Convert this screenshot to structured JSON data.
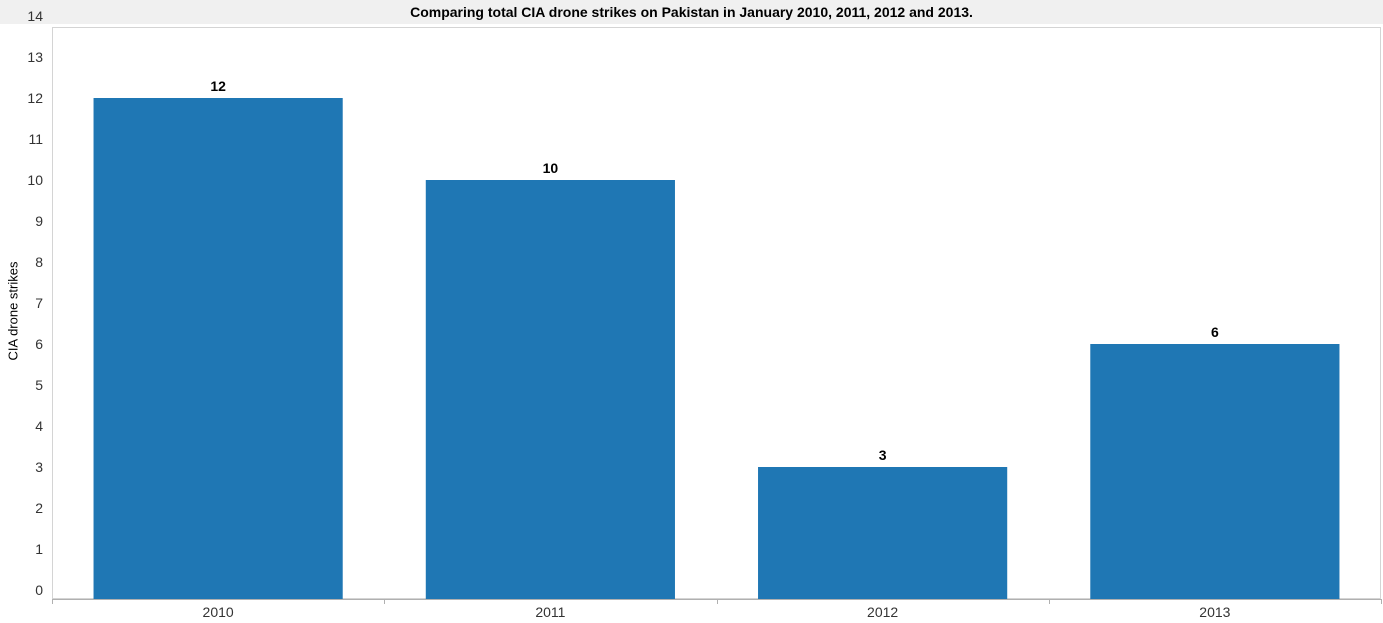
{
  "chart_data": {
    "type": "bar",
    "title": "Comparing total CIA drone strikes on Pakistan in January 2010, 2011, 2012 and 2013.",
    "xlabel": "",
    "ylabel": "CIA drone strikes",
    "categories": [
      "2010",
      "2011",
      "2012",
      "2013"
    ],
    "values": [
      12,
      10,
      3,
      6
    ],
    "data_labels": [
      "12",
      "10",
      "3",
      "6"
    ],
    "ylim": [
      0,
      14
    ],
    "yticks": [
      "0",
      "1",
      "2",
      "3",
      "4",
      "5",
      "6",
      "7",
      "8",
      "9",
      "10",
      "11",
      "12",
      "13",
      "14"
    ],
    "bar_color": "#1f77b4",
    "grid": false,
    "legend": "none"
  }
}
